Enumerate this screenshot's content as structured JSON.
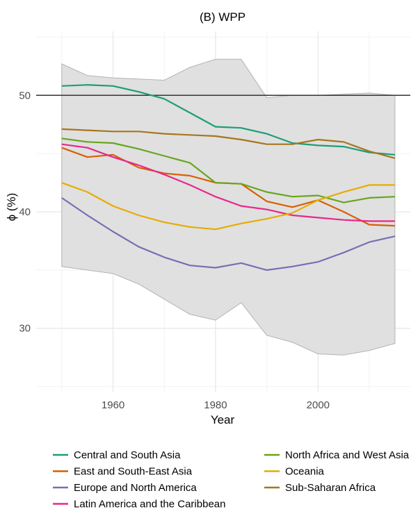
{
  "chart_data": {
    "type": "line",
    "title": "(B) WPP",
    "xlabel": "Year",
    "ylabel": "ϕ (%)",
    "xlim": [
      1945,
      2018
    ],
    "ylim": [
      24.5,
      55.5
    ],
    "x_ticks": [
      1960,
      1980,
      2000
    ],
    "y_ticks": [
      30,
      40,
      50
    ],
    "grid": true,
    "reference_line": 50,
    "x": [
      1950,
      1955,
      1960,
      1965,
      1970,
      1975,
      1980,
      1985,
      1990,
      1995,
      2000,
      2005,
      2010,
      2015
    ],
    "band": {
      "upper": [
        52.7,
        51.7,
        51.5,
        51.4,
        51.3,
        52.4,
        53.1,
        53.1,
        49.8,
        50.0,
        50.0,
        50.1,
        50.2,
        50.0
      ],
      "lower": [
        35.3,
        35.0,
        34.7,
        33.8,
        32.5,
        31.2,
        30.7,
        32.2,
        29.4,
        28.8,
        27.8,
        27.7,
        28.1,
        28.7
      ],
      "color": "#e0e0e0"
    },
    "series": [
      {
        "name": "Central and South Asia",
        "color": "#1b9e77",
        "values": [
          50.8,
          50.9,
          50.8,
          50.3,
          49.7,
          48.5,
          47.3,
          47.2,
          46.7,
          45.9,
          45.7,
          45.6,
          45.1,
          44.9
        ]
      },
      {
        "name": "East and South-East Asia",
        "color": "#d95f02",
        "values": [
          45.5,
          44.7,
          44.9,
          43.8,
          43.3,
          43.1,
          42.5,
          42.4,
          40.9,
          40.4,
          41.0,
          40.0,
          38.9,
          38.8
        ]
      },
      {
        "name": "Europe and North America",
        "color": "#7570b3",
        "values": [
          41.2,
          39.7,
          38.3,
          37.0,
          36.1,
          35.4,
          35.2,
          35.6,
          35.0,
          35.3,
          35.7,
          36.5,
          37.4,
          37.9
        ]
      },
      {
        "name": "Latin America and the Caribbean",
        "color": "#e7298a",
        "values": [
          45.8,
          45.5,
          44.7,
          44.0,
          43.2,
          42.3,
          41.3,
          40.5,
          40.2,
          39.7,
          39.5,
          39.3,
          39.2,
          39.2
        ]
      },
      {
        "name": "North Africa and West Asia",
        "color": "#66a61e",
        "values": [
          46.3,
          46.0,
          45.9,
          45.4,
          44.8,
          44.2,
          42.5,
          42.4,
          41.7,
          41.3,
          41.4,
          40.8,
          41.2,
          41.3
        ]
      },
      {
        "name": "Oceania",
        "color": "#e6ab02",
        "values": [
          42.5,
          41.7,
          40.5,
          39.7,
          39.1,
          38.7,
          38.5,
          39.0,
          39.4,
          39.9,
          41.0,
          41.7,
          42.3,
          42.3
        ]
      },
      {
        "name": "Sub-Saharan Africa",
        "color": "#a6761d",
        "values": [
          47.1,
          47.0,
          46.9,
          46.9,
          46.7,
          46.6,
          46.5,
          46.2,
          45.8,
          45.8,
          46.2,
          46.0,
          45.2,
          44.6
        ]
      }
    ],
    "legend": {
      "position": "bottom",
      "columns": [
        [
          "Central and South Asia",
          "East and South-East Asia",
          "Europe and North America",
          "Latin America and the Caribbean"
        ],
        [
          "North Africa and West Asia",
          "Oceania",
          "Sub-Saharan Africa"
        ]
      ]
    }
  }
}
